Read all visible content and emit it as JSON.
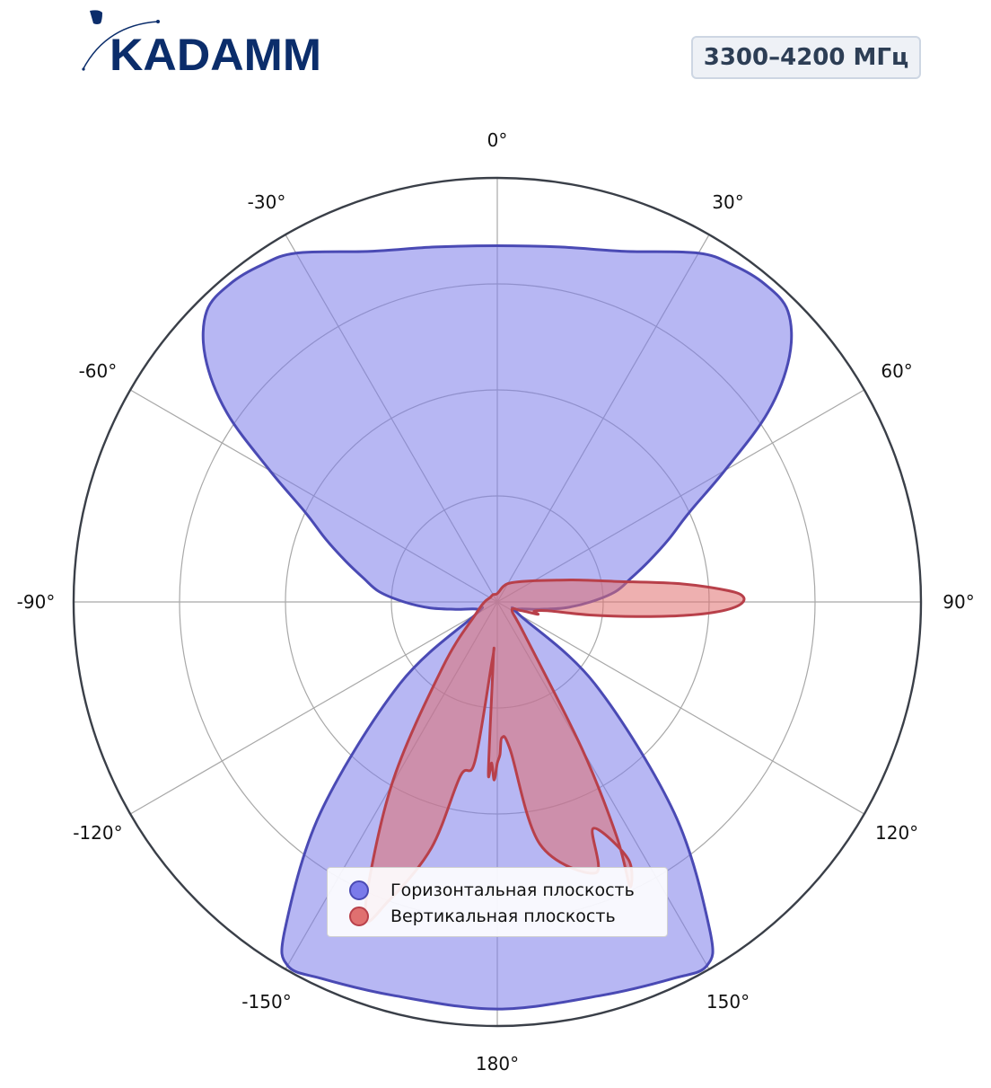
{
  "brand": {
    "logo_text": "KADAMM",
    "logo_color": "#0b2d6b"
  },
  "badge": {
    "text": "3300–4200 МГц"
  },
  "chart_data": {
    "type": "polar",
    "title": "",
    "theta_direction": "clockwise",
    "theta_zero": "top",
    "angular_ticks": [
      "0°",
      "30°",
      "60°",
      "90°",
      "120°",
      "150°",
      "180°",
      "-150°",
      "-120°",
      "-90°",
      "-60°",
      "-30°"
    ],
    "radial_grid_count": 4,
    "legend": {
      "placement": "lower-center"
    },
    "series": [
      {
        "name": "Горизонтальная плоскость",
        "color": "#7b7bea",
        "edge": "#4a4ab4",
        "points": [
          [
            0,
            0.84
          ],
          [
            10,
            0.85
          ],
          [
            20,
            0.88
          ],
          [
            30,
            0.95
          ],
          [
            35,
            0.97
          ],
          [
            40,
            0.98
          ],
          [
            45,
            0.97
          ],
          [
            50,
            0.9
          ],
          [
            55,
            0.78
          ],
          [
            60,
            0.62
          ],
          [
            65,
            0.5
          ],
          [
            70,
            0.43
          ],
          [
            75,
            0.37
          ],
          [
            80,
            0.32
          ],
          [
            85,
            0.28
          ],
          [
            90,
            0.22
          ],
          [
            95,
            0.16
          ],
          [
            100,
            0.1
          ],
          [
            110,
            0.05
          ],
          [
            120,
            0.06
          ],
          [
            130,
            0.3
          ],
          [
            140,
            0.65
          ],
          [
            147,
            0.92
          ],
          [
            150,
            0.99
          ],
          [
            155,
            0.98
          ],
          [
            165,
            0.96
          ],
          [
            180,
            0.96
          ],
          [
            -165,
            0.96
          ],
          [
            -155,
            0.98
          ],
          [
            -150,
            0.99
          ],
          [
            -147,
            0.92
          ],
          [
            -140,
            0.65
          ],
          [
            -130,
            0.3
          ],
          [
            -120,
            0.06
          ],
          [
            -110,
            0.05
          ],
          [
            -100,
            0.1
          ],
          [
            -95,
            0.16
          ],
          [
            -90,
            0.22
          ],
          [
            -85,
            0.28
          ],
          [
            -80,
            0.32
          ],
          [
            -75,
            0.37
          ],
          [
            -70,
            0.43
          ],
          [
            -65,
            0.5
          ],
          [
            -60,
            0.62
          ],
          [
            -55,
            0.78
          ],
          [
            -50,
            0.9
          ],
          [
            -45,
            0.97
          ],
          [
            -40,
            0.98
          ],
          [
            -35,
            0.97
          ],
          [
            -30,
            0.95
          ],
          [
            -20,
            0.88
          ],
          [
            -10,
            0.85
          ]
        ]
      },
      {
        "name": "Вертикальная плоскость",
        "color": "#e07070",
        "edge": "#b8404a",
        "points": [
          [
            0,
            0.02
          ],
          [
            30,
            0.05
          ],
          [
            60,
            0.1
          ],
          [
            70,
            0.15
          ],
          [
            75,
            0.2
          ],
          [
            80,
            0.28
          ],
          [
            84,
            0.42
          ],
          [
            86,
            0.5
          ],
          [
            88,
            0.57
          ],
          [
            90,
            0.58
          ],
          [
            92,
            0.54
          ],
          [
            94,
            0.45
          ],
          [
            96,
            0.33
          ],
          [
            98,
            0.22
          ],
          [
            100,
            0.12
          ],
          [
            104,
            0.09
          ],
          [
            107,
            0.1
          ],
          [
            110,
            0.06
          ],
          [
            120,
            0.04
          ],
          [
            140,
            0.1
          ],
          [
            150,
            0.4
          ],
          [
            153,
            0.62
          ],
          [
            155,
            0.74
          ],
          [
            153,
            0.68
          ],
          [
            157,
            0.58
          ],
          [
            160,
            0.68
          ],
          [
            170,
            0.58
          ],
          [
            175,
            0.35
          ],
          [
            178,
            0.32
          ],
          [
            179,
            0.36
          ],
          [
            180,
            0.38
          ],
          [
            -179,
            0.42
          ],
          [
            -178,
            0.38
          ],
          [
            -177,
            0.4
          ],
          [
            -176,
            0.14
          ],
          [
            -175,
            0.14
          ],
          [
            -172,
            0.38
          ],
          [
            -168,
            0.42
          ],
          [
            -165,
            0.6
          ],
          [
            -160,
            0.75
          ],
          [
            -157,
            0.8
          ],
          [
            -150,
            0.5
          ],
          [
            -140,
            0.2
          ],
          [
            -120,
            0.06
          ],
          [
            -90,
            0.03
          ],
          [
            -60,
            0.02
          ],
          [
            -30,
            0.02
          ]
        ]
      }
    ]
  }
}
